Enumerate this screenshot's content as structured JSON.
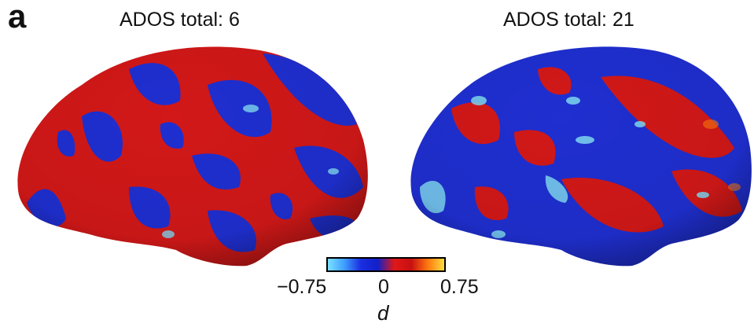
{
  "panel_label": "a",
  "brains": [
    {
      "title": "ADOS total: 6"
    },
    {
      "title": "ADOS total: 21"
    }
  ],
  "colorbar": {
    "min_label": "−0.75",
    "mid_label": "0",
    "max_label": "0.75",
    "label": "d",
    "colors": [
      "#7fe3ff",
      "#3fa0ff",
      "#1a2ee0",
      "#1220c8",
      "#e01818",
      "#c81010",
      "#ff7a10",
      "#ffe040"
    ]
  },
  "colors": {
    "surface_blue": "#1f2fd0",
    "surface_red": "#d21818",
    "highlight_cyan": "#7fd8f0"
  }
}
